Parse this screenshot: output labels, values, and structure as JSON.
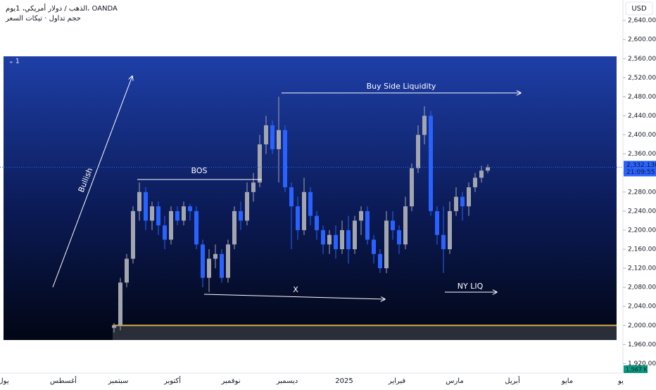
{
  "chart_data": {
    "type": "candlestick",
    "title": "الذهب / دولار أمريكي، 1يوم، OANDA",
    "subtitle": "حجم تداول · تيكات السعر",
    "pane_label": "1",
    "currency": "USD",
    "ylim": [
      1900,
      2683
    ],
    "yticks": [
      {
        "value": 1920,
        "label": "1,920.000"
      },
      {
        "value": 1960,
        "label": "1,960.000"
      },
      {
        "value": 2000,
        "label": "2,000.000"
      },
      {
        "value": 2040,
        "label": "2,040.000"
      },
      {
        "value": 2080,
        "label": "2,080.000"
      },
      {
        "value": 2120,
        "label": "2,120.000"
      },
      {
        "value": 2160,
        "label": "2,160.000"
      },
      {
        "value": 2200,
        "label": "2,200.000"
      },
      {
        "value": 2240,
        "label": "2,240.000"
      },
      {
        "value": 2280,
        "label": "2,280.000"
      },
      {
        "value": 2320,
        "label": "2,320.000"
      },
      {
        "value": 2360,
        "label": "2,360.000"
      },
      {
        "value": 2400,
        "label": "2,400.000"
      },
      {
        "value": 2440,
        "label": "2,440.000"
      },
      {
        "value": 2480,
        "label": "2,480.000"
      },
      {
        "value": 2520,
        "label": "2,520.000"
      },
      {
        "value": 2560,
        "label": "2,560.000"
      },
      {
        "value": 2600,
        "label": "2,600.000"
      },
      {
        "value": 2640,
        "label": "2,640.000"
      }
    ],
    "time_labels": [
      "يول",
      "أغسطس",
      "سبتمبر",
      "أكتوبر",
      "نوفمبر",
      "ديسمبر",
      "2025",
      "فبراير",
      "مارس",
      "أبريل",
      "مايو",
      "يو"
    ],
    "up_color": "#a3a6af",
    "down_color": "#2962ff",
    "open": [
      1995,
      2000,
      2090,
      2140,
      2240,
      2280,
      2220,
      2250,
      2210,
      2180,
      2240,
      2220,
      2250,
      2240,
      2170,
      2100,
      2140,
      2150,
      2100,
      2170,
      2240,
      2220,
      2280,
      2300,
      2380,
      2420,
      2370,
      2410,
      2290,
      2250,
      2200,
      2280,
      2230,
      2200,
      2170,
      2190,
      2160,
      2200,
      2160,
      2220,
      2240,
      2180,
      2150,
      2120,
      2220,
      2200,
      2170,
      2250,
      2330,
      2400,
      2440,
      2240,
      2190,
      2160,
      2240,
      2270,
      2250,
      2290,
      2310,
      2325
    ],
    "high": [
      2005,
      2100,
      2150,
      2250,
      2300,
      2290,
      2260,
      2260,
      2230,
      2250,
      2250,
      2260,
      2255,
      2250,
      2180,
      2160,
      2170,
      2160,
      2180,
      2250,
      2260,
      2300,
      2320,
      2400,
      2440,
      2430,
      2480,
      2420,
      2300,
      2270,
      2310,
      2290,
      2240,
      2210,
      2200,
      2210,
      2220,
      2230,
      2230,
      2250,
      2250,
      2190,
      2160,
      2240,
      2240,
      2210,
      2270,
      2340,
      2420,
      2460,
      2450,
      2250,
      2250,
      2260,
      2290,
      2280,
      2300,
      2320,
      2335,
      2338
    ],
    "low": [
      1985,
      1990,
      2080,
      2130,
      2220,
      2200,
      2200,
      2190,
      2160,
      2170,
      2210,
      2210,
      2220,
      2160,
      2080,
      2070,
      2120,
      2090,
      2090,
      2160,
      2200,
      2210,
      2260,
      2290,
      2360,
      2360,
      2300,
      2280,
      2160,
      2180,
      2190,
      2210,
      2180,
      2150,
      2150,
      2140,
      2150,
      2130,
      2150,
      2190,
      2170,
      2130,
      2110,
      2110,
      2180,
      2150,
      2160,
      2240,
      2320,
      2380,
      2230,
      2170,
      2110,
      2150,
      2230,
      2220,
      2230,
      2280,
      2300,
      2320
    ],
    "close": [
      2000,
      2090,
      2140,
      2240,
      2280,
      2220,
      2250,
      2210,
      2180,
      2240,
      2220,
      2250,
      2240,
      2170,
      2100,
      2140,
      2150,
      2100,
      2170,
      2240,
      2220,
      2280,
      2300,
      2380,
      2420,
      2370,
      2410,
      2290,
      2250,
      2200,
      2280,
      2230,
      2200,
      2170,
      2190,
      2160,
      2200,
      2160,
      2220,
      2240,
      2180,
      2150,
      2120,
      2220,
      2200,
      2170,
      2250,
      2330,
      2400,
      2440,
      2240,
      2190,
      2160,
      2240,
      2270,
      2250,
      2290,
      2310,
      2325,
      2332
    ],
    "support_level": 2000,
    "last_price": {
      "value": 2332.13,
      "label": "2,332.130"
    },
    "countdown": "21:09:55",
    "volume_label": "1.567 K",
    "annotations": [
      "Bullish",
      "BOS",
      "Buy Side Liquidity",
      "X",
      "NY LIQ"
    ]
  }
}
